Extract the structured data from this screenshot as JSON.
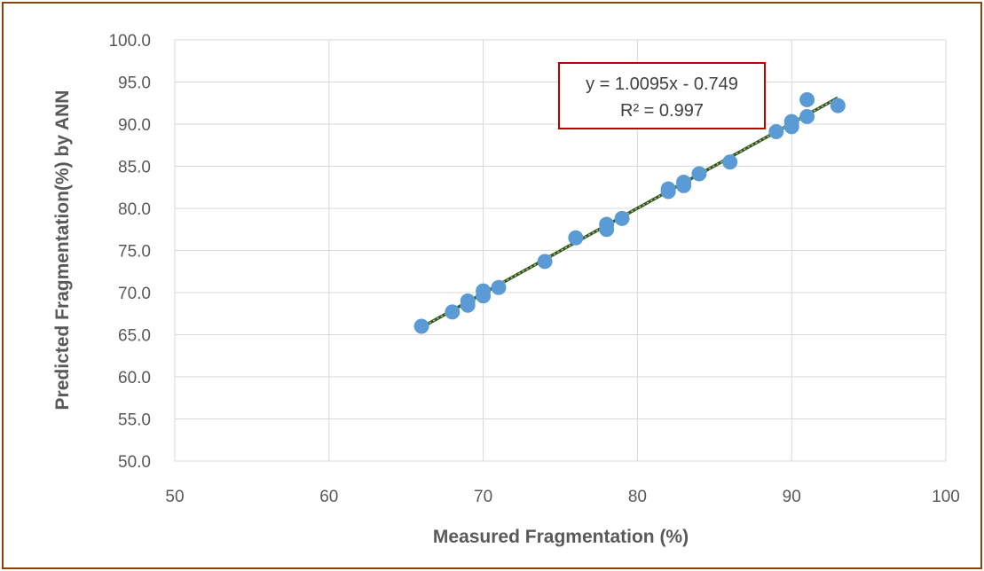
{
  "chart_data": {
    "type": "scatter",
    "xlabel": "Measured Fragmentation (%)",
    "ylabel": "Predicted Fragmentation(%) by ANN",
    "xlim": [
      50,
      100
    ],
    "ylim": [
      50,
      100
    ],
    "xticks": [
      "50",
      "60",
      "70",
      "80",
      "90",
      "100"
    ],
    "yticks": [
      "50.0",
      "55.0",
      "60.0",
      "65.0",
      "70.0",
      "75.0",
      "80.0",
      "85.0",
      "90.0",
      "95.0",
      "100.0"
    ],
    "grid": true,
    "series": [
      {
        "points": [
          [
            66,
            66.0
          ],
          [
            68,
            67.7
          ],
          [
            69,
            68.5
          ],
          [
            69,
            69.0
          ],
          [
            70,
            69.6
          ],
          [
            70,
            70.2
          ],
          [
            71,
            70.6
          ],
          [
            74,
            73.7
          ],
          [
            76,
            76.5
          ],
          [
            78,
            77.5
          ],
          [
            78,
            78.1
          ],
          [
            79,
            78.8
          ],
          [
            82,
            82.0
          ],
          [
            82,
            82.3
          ],
          [
            83,
            82.7
          ],
          [
            83,
            83.1
          ],
          [
            84,
            84.1
          ],
          [
            86,
            85.5
          ],
          [
            89,
            89.1
          ],
          [
            90,
            89.7
          ],
          [
            90,
            90.3
          ],
          [
            91,
            90.9
          ],
          [
            91,
            92.9
          ],
          [
            93,
            92.2
          ]
        ],
        "color": "#5B9BD5"
      }
    ],
    "trendline": {
      "type": "linear",
      "slope": 1.0095,
      "intercept": -0.749,
      "x_range": [
        66,
        93
      ],
      "color": "#375623",
      "equation_label": "y = 1.0095x - 0.749",
      "r2_label": "R² = 0.997",
      "label_border_color": "#C00000"
    }
  }
}
